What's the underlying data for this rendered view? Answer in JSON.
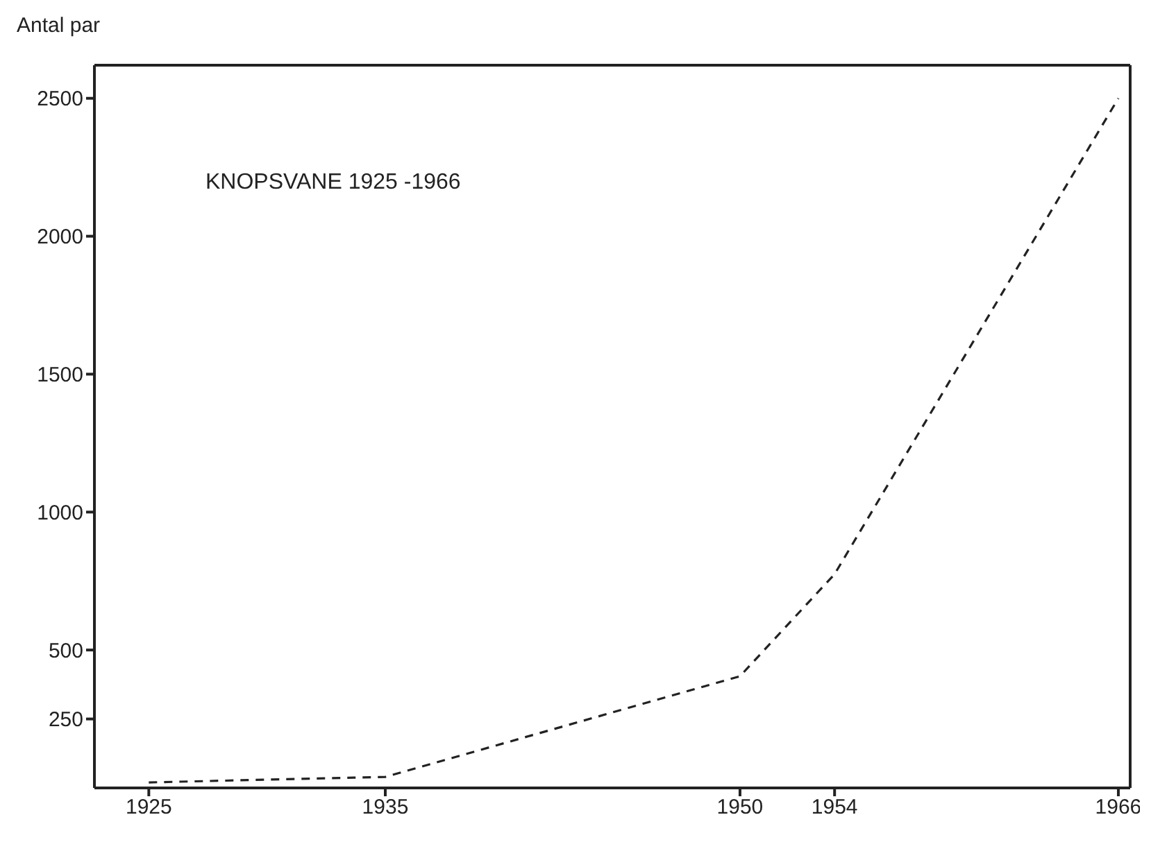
{
  "chart_data": {
    "type": "line",
    "title": "KNOPSVANE  1925 -1966",
    "ylabel": "Antal par",
    "x": [
      1925,
      1935,
      1950,
      1954,
      1966
    ],
    "series": [
      {
        "color": "#222222",
        "values": [
          20,
          40,
          405,
          775,
          2500
        ]
      }
    ],
    "xlim": [
      1922.7,
      1966.5
    ],
    "xticks": [
      1925,
      1935,
      1950,
      1954,
      1966
    ],
    "ylim": [
      0,
      2620
    ],
    "yticks": [
      250,
      500,
      1000,
      1500,
      2000,
      2500
    ],
    "grid": false,
    "legend": false,
    "marker": "none",
    "line_style": "dashed"
  }
}
